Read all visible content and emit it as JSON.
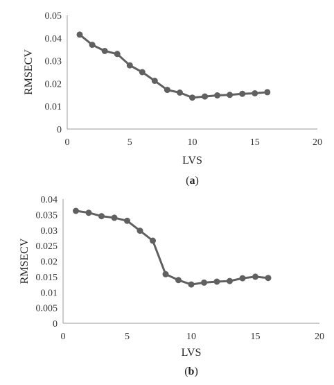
{
  "accent_color": "#606060",
  "chart_data": [
    {
      "type": "line",
      "panel_label": "(a)",
      "xlabel": "LVS",
      "ylabel": "RMSECV",
      "xlim": [
        0,
        20
      ],
      "ylim": [
        0,
        0.05
      ],
      "xticks": [
        "0",
        "5",
        "10",
        "15",
        "20"
      ],
      "yticks": [
        "0",
        "0.01",
        "0.02",
        "0.03",
        "0.04",
        "0.05"
      ],
      "grid": false,
      "series": [
        {
          "x": [
            1,
            2,
            3,
            4,
            5,
            6,
            7,
            8,
            9,
            10,
            11,
            12,
            13,
            14,
            15,
            16
          ],
          "values": [
            0.0415,
            0.037,
            0.0343,
            0.033,
            0.028,
            0.025,
            0.0212,
            0.0172,
            0.016,
            0.0138,
            0.0143,
            0.0148,
            0.015,
            0.0155,
            0.0157,
            0.0162
          ]
        }
      ]
    },
    {
      "type": "line",
      "panel_label": "(b)",
      "xlabel": "LVS",
      "ylabel": "RMSECV",
      "xlim": [
        0,
        20
      ],
      "ylim": [
        0,
        0.04
      ],
      "xticks": [
        "0",
        "5",
        "10",
        "15",
        "20"
      ],
      "yticks": [
        "0",
        "0.005",
        "0.01",
        "0.015",
        "0.02",
        "0.025",
        "0.03",
        "0.035",
        "0.04"
      ],
      "grid": false,
      "series": [
        {
          "x": [
            1,
            2,
            3,
            4,
            5,
            6,
            7,
            8,
            9,
            10,
            11,
            12,
            13,
            14,
            15,
            16
          ],
          "values": [
            0.0362,
            0.0356,
            0.0345,
            0.034,
            0.033,
            0.0298,
            0.0266,
            0.0158,
            0.0139,
            0.0125,
            0.0131,
            0.0134,
            0.0136,
            0.0145,
            0.015,
            0.0146
          ]
        }
      ]
    }
  ]
}
